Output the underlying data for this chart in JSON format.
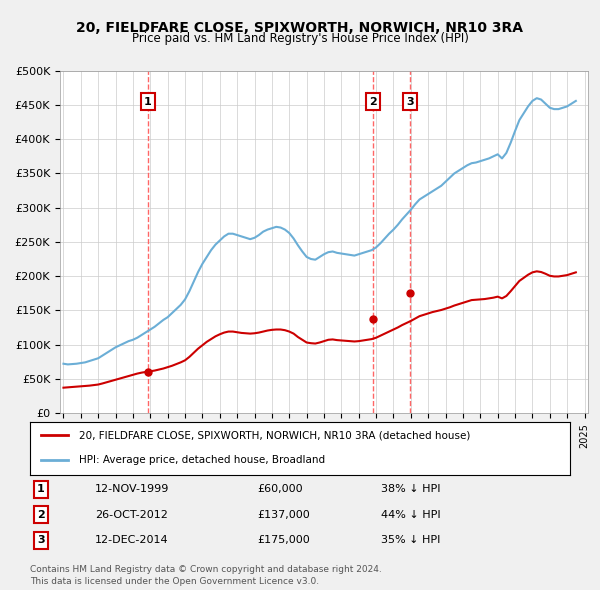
{
  "title": "20, FIELDFARE CLOSE, SPIXWORTH, NORWICH, NR10 3RA",
  "subtitle": "Price paid vs. HM Land Registry's House Price Index (HPI)",
  "ylabel": "",
  "ylim": [
    0,
    500000
  ],
  "yticks": [
    0,
    50000,
    100000,
    150000,
    200000,
    250000,
    300000,
    350000,
    400000,
    450000,
    500000
  ],
  "ytick_labels": [
    "£0",
    "£50K",
    "£100K",
    "£150K",
    "£200K",
    "£250K",
    "£300K",
    "£350K",
    "£400K",
    "£450K",
    "£500K"
  ],
  "hpi_color": "#6baed6",
  "price_color": "#cc0000",
  "sale_line_color": "#ff6666",
  "sales": [
    {
      "date_label": "1",
      "date": 1999.87,
      "price": 60000,
      "pct": "38% ↓ HPI",
      "date_str": "12-NOV-1999",
      "price_str": "£60,000"
    },
    {
      "date_label": "2",
      "date": 2012.82,
      "price": 137000,
      "pct": "44% ↓ HPI",
      "date_str": "26-OCT-2012",
      "price_str": "£137,000"
    },
    {
      "date_label": "3",
      "date": 2014.95,
      "price": 175000,
      "pct": "35% ↓ HPI",
      "date_str": "12-DEC-2014",
      "price_str": "£175,000"
    }
  ],
  "legend_line1": "20, FIELDFARE CLOSE, SPIXWORTH, NORWICH, NR10 3RA (detached house)",
  "legend_line2": "HPI: Average price, detached house, Broadland",
  "footnote1": "Contains HM Land Registry data © Crown copyright and database right 2024.",
  "footnote2": "This data is licensed under the Open Government Licence v3.0.",
  "hpi_data_x": [
    1995.0,
    1995.25,
    1995.5,
    1995.75,
    1996.0,
    1996.25,
    1996.5,
    1996.75,
    1997.0,
    1997.25,
    1997.5,
    1997.75,
    1998.0,
    1998.25,
    1998.5,
    1998.75,
    1999.0,
    1999.25,
    1999.5,
    1999.75,
    2000.0,
    2000.25,
    2000.5,
    2000.75,
    2001.0,
    2001.25,
    2001.5,
    2001.75,
    2002.0,
    2002.25,
    2002.5,
    2002.75,
    2003.0,
    2003.25,
    2003.5,
    2003.75,
    2004.0,
    2004.25,
    2004.5,
    2004.75,
    2005.0,
    2005.25,
    2005.5,
    2005.75,
    2006.0,
    2006.25,
    2006.5,
    2006.75,
    2007.0,
    2007.25,
    2007.5,
    2007.75,
    2008.0,
    2008.25,
    2008.5,
    2008.75,
    2009.0,
    2009.25,
    2009.5,
    2009.75,
    2010.0,
    2010.25,
    2010.5,
    2010.75,
    2011.0,
    2011.25,
    2011.5,
    2011.75,
    2012.0,
    2012.25,
    2012.5,
    2012.75,
    2013.0,
    2013.25,
    2013.5,
    2013.75,
    2014.0,
    2014.25,
    2014.5,
    2014.75,
    2015.0,
    2015.25,
    2015.5,
    2015.75,
    2016.0,
    2016.25,
    2016.5,
    2016.75,
    2017.0,
    2017.25,
    2017.5,
    2017.75,
    2018.0,
    2018.25,
    2018.5,
    2018.75,
    2019.0,
    2019.25,
    2019.5,
    2019.75,
    2020.0,
    2020.25,
    2020.5,
    2020.75,
    2021.0,
    2021.25,
    2021.5,
    2021.75,
    2022.0,
    2022.25,
    2022.5,
    2022.75,
    2023.0,
    2023.25,
    2023.5,
    2023.75,
    2024.0,
    2024.25,
    2024.5
  ],
  "hpi_data_y": [
    72000,
    71000,
    71500,
    72000,
    73000,
    74000,
    76000,
    78000,
    80000,
    84000,
    88000,
    92000,
    96000,
    99000,
    102000,
    105000,
    107000,
    110000,
    114000,
    118000,
    122000,
    126000,
    131000,
    136000,
    140000,
    146000,
    152000,
    158000,
    166000,
    178000,
    192000,
    206000,
    218000,
    228000,
    238000,
    246000,
    252000,
    258000,
    262000,
    262000,
    260000,
    258000,
    256000,
    254000,
    256000,
    260000,
    265000,
    268000,
    270000,
    272000,
    271000,
    268000,
    263000,
    255000,
    245000,
    236000,
    228000,
    225000,
    224000,
    228000,
    232000,
    235000,
    236000,
    234000,
    233000,
    232000,
    231000,
    230000,
    232000,
    234000,
    236000,
    238000,
    242000,
    248000,
    255000,
    262000,
    268000,
    275000,
    283000,
    290000,
    297000,
    305000,
    312000,
    316000,
    320000,
    324000,
    328000,
    332000,
    338000,
    344000,
    350000,
    354000,
    358000,
    362000,
    365000,
    366000,
    368000,
    370000,
    372000,
    375000,
    378000,
    372000,
    380000,
    395000,
    412000,
    428000,
    438000,
    448000,
    456000,
    460000,
    458000,
    452000,
    446000,
    444000,
    444000,
    446000,
    448000,
    452000,
    456000
  ],
  "price_data_x": [
    1995.0,
    1995.25,
    1995.5,
    1995.75,
    1996.0,
    1996.25,
    1996.5,
    1996.75,
    1997.0,
    1997.25,
    1997.5,
    1997.75,
    1998.0,
    1998.25,
    1998.5,
    1998.75,
    1999.0,
    1999.25,
    1999.5,
    1999.75,
    2000.0,
    2000.25,
    2000.5,
    2000.75,
    2001.0,
    2001.25,
    2001.5,
    2001.75,
    2002.0,
    2002.25,
    2002.5,
    2002.75,
    2003.0,
    2003.25,
    2003.5,
    2003.75,
    2004.0,
    2004.25,
    2004.5,
    2004.75,
    2005.0,
    2005.25,
    2005.5,
    2005.75,
    2006.0,
    2006.25,
    2006.5,
    2006.75,
    2007.0,
    2007.25,
    2007.5,
    2007.75,
    2008.0,
    2008.25,
    2008.5,
    2008.75,
    2009.0,
    2009.25,
    2009.5,
    2009.75,
    2010.0,
    2010.25,
    2010.5,
    2010.75,
    2011.0,
    2011.25,
    2011.5,
    2011.75,
    2012.0,
    2012.25,
    2012.5,
    2012.75,
    2013.0,
    2013.25,
    2013.5,
    2013.75,
    2014.0,
    2014.25,
    2014.5,
    2014.75,
    2015.0,
    2015.25,
    2015.5,
    2015.75,
    2016.0,
    2016.25,
    2016.5,
    2016.75,
    2017.0,
    2017.25,
    2017.5,
    2017.75,
    2018.0,
    2018.25,
    2018.5,
    2018.75,
    2019.0,
    2019.25,
    2019.5,
    2019.75,
    2020.0,
    2020.25,
    2020.5,
    2020.75,
    2021.0,
    2021.25,
    2021.5,
    2021.75,
    2022.0,
    2022.25,
    2022.5,
    2022.75,
    2023.0,
    2023.25,
    2023.5,
    2023.75,
    2024.0,
    2024.25,
    2024.5
  ],
  "price_data_y": [
    37000,
    37500,
    38000,
    38500,
    39000,
    39500,
    40000,
    40800,
    41600,
    43200,
    45000,
    46800,
    48600,
    50400,
    52200,
    54000,
    55800,
    57600,
    59000,
    60000,
    61000,
    62000,
    63500,
    65000,
    67000,
    69000,
    71500,
    74000,
    77000,
    82000,
    88000,
    94000,
    99000,
    104000,
    108000,
    112000,
    115000,
    117500,
    119000,
    119000,
    118000,
    117000,
    116500,
    116000,
    116500,
    117500,
    119000,
    120500,
    121500,
    122000,
    122000,
    121000,
    119000,
    116000,
    111000,
    107000,
    103000,
    102000,
    101500,
    103000,
    105000,
    107000,
    107500,
    106500,
    106000,
    105500,
    105000,
    104500,
    105000,
    106000,
    107000,
    108000,
    110000,
    113000,
    116000,
    119000,
    122000,
    125000,
    128500,
    131500,
    134500,
    138000,
    141500,
    143500,
    145500,
    147500,
    149000,
    150500,
    152500,
    154500,
    157000,
    159000,
    161000,
    163000,
    165000,
    165500,
    166000,
    166500,
    167500,
    168500,
    170000,
    167500,
    171000,
    178000,
    185500,
    193000,
    197500,
    202000,
    205500,
    207000,
    206000,
    203500,
    200500,
    199500,
    199500,
    200500,
    201500,
    203500,
    205500
  ],
  "xtick_years": [
    1995,
    1996,
    1997,
    1998,
    1999,
    2000,
    2001,
    2002,
    2003,
    2004,
    2005,
    2006,
    2007,
    2008,
    2009,
    2010,
    2011,
    2012,
    2013,
    2014,
    2015,
    2016,
    2017,
    2018,
    2019,
    2020,
    2021,
    2022,
    2023,
    2024,
    2025
  ],
  "bg_color": "#f0f0f0",
  "plot_bg_color": "#ffffff"
}
